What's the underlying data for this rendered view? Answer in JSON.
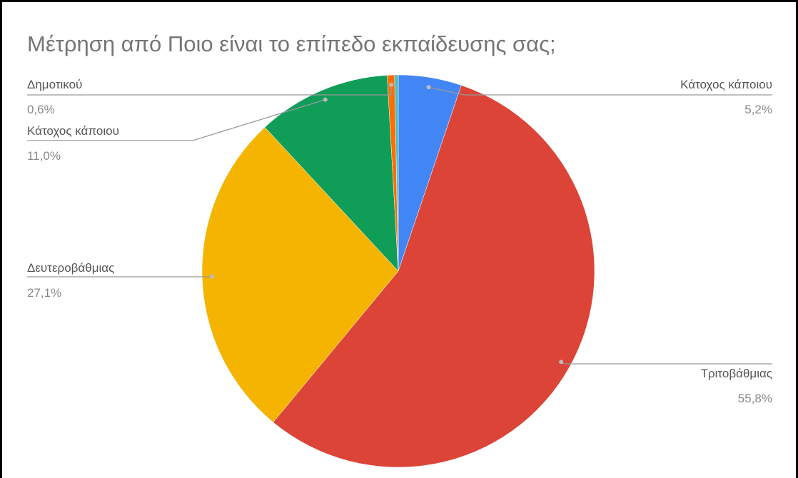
{
  "chart_data": {
    "type": "pie",
    "title": "Μέτρηση από Ποιο είναι το επίπεδο εκπαίδευσης σας;",
    "categories": [
      "Κάτοχος κάποιου",
      "Τριτοβάθμιας",
      "Δευτεροβάθμιας",
      "Κάτοχος κάποιου",
      "Δημοτικού",
      null
    ],
    "values": [
      5.2,
      55.8,
      27.1,
      11.0,
      0.6,
      0.3
    ],
    "value_labels": [
      "5,2%",
      "55,8%",
      "27,1%",
      "11,0%",
      "0,6%",
      null
    ],
    "colors": [
      "#4285f4",
      "#db4437",
      "#f4b400",
      "#0f9d58",
      "#ff6d00",
      "#46bdc6"
    ]
  }
}
